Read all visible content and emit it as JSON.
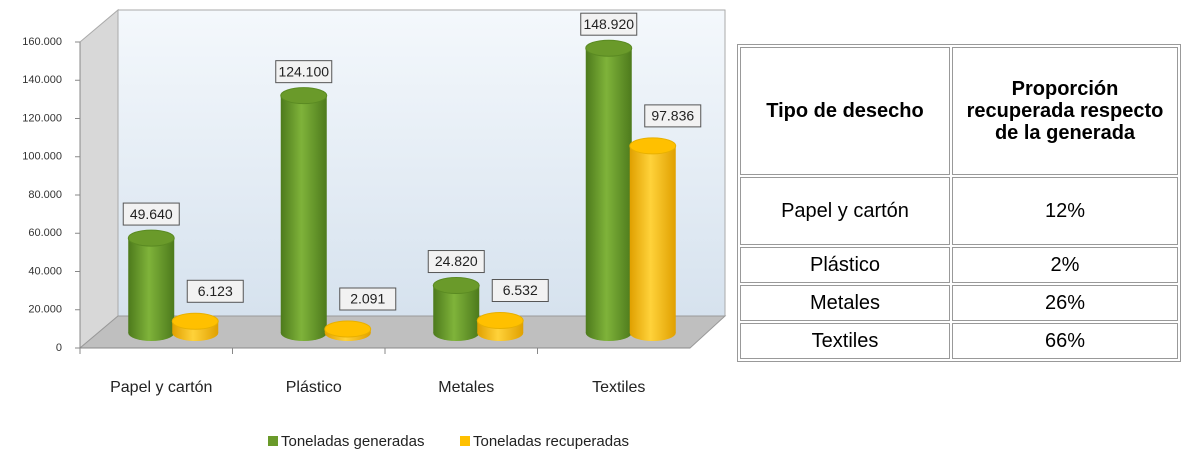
{
  "chart_data": {
    "type": "bar",
    "categories": [
      "Papel y cartón",
      "Plástico",
      "Metales",
      "Textiles"
    ],
    "series": [
      {
        "name": "Toneladas generadas",
        "color": "#6a9a2a",
        "values": [
          49640,
          124100,
          24820,
          148920
        ],
        "value_labels": [
          "49.640",
          "124.100",
          "24.820",
          "148.920"
        ]
      },
      {
        "name": "Toneladas recuperadas",
        "color": "#ffc000",
        "values": [
          6123,
          2091,
          6532,
          97836
        ],
        "value_labels": [
          "6.123",
          "2.091",
          "6.532",
          "97.836"
        ]
      }
    ],
    "ylim": [
      0,
      160000
    ],
    "yticks": [
      0,
      {
        "value": 20000,
        "label": "20.000"
      },
      {
        "value": 40000,
        "label": "40.000"
      },
      {
        "value": 60000,
        "label": "60.000"
      },
      {
        "value": 80000,
        "label": "80.000"
      },
      {
        "value": 100000,
        "label": "100.000"
      },
      {
        "value": 120000,
        "label": "120.000"
      },
      {
        "value": 140000,
        "label": "140.000"
      },
      {
        "value": 160000,
        "label": "160.000"
      }
    ],
    "legend": "bottom"
  },
  "table": {
    "header": [
      "Tipo de desecho",
      "Proporción recuperada respecto de la generada"
    ],
    "rows": [
      [
        "Papel y cartón",
        "12%"
      ],
      [
        "Plástico",
        "2%"
      ],
      [
        "Metales",
        "26%"
      ],
      [
        "Textiles",
        "66%"
      ]
    ]
  }
}
